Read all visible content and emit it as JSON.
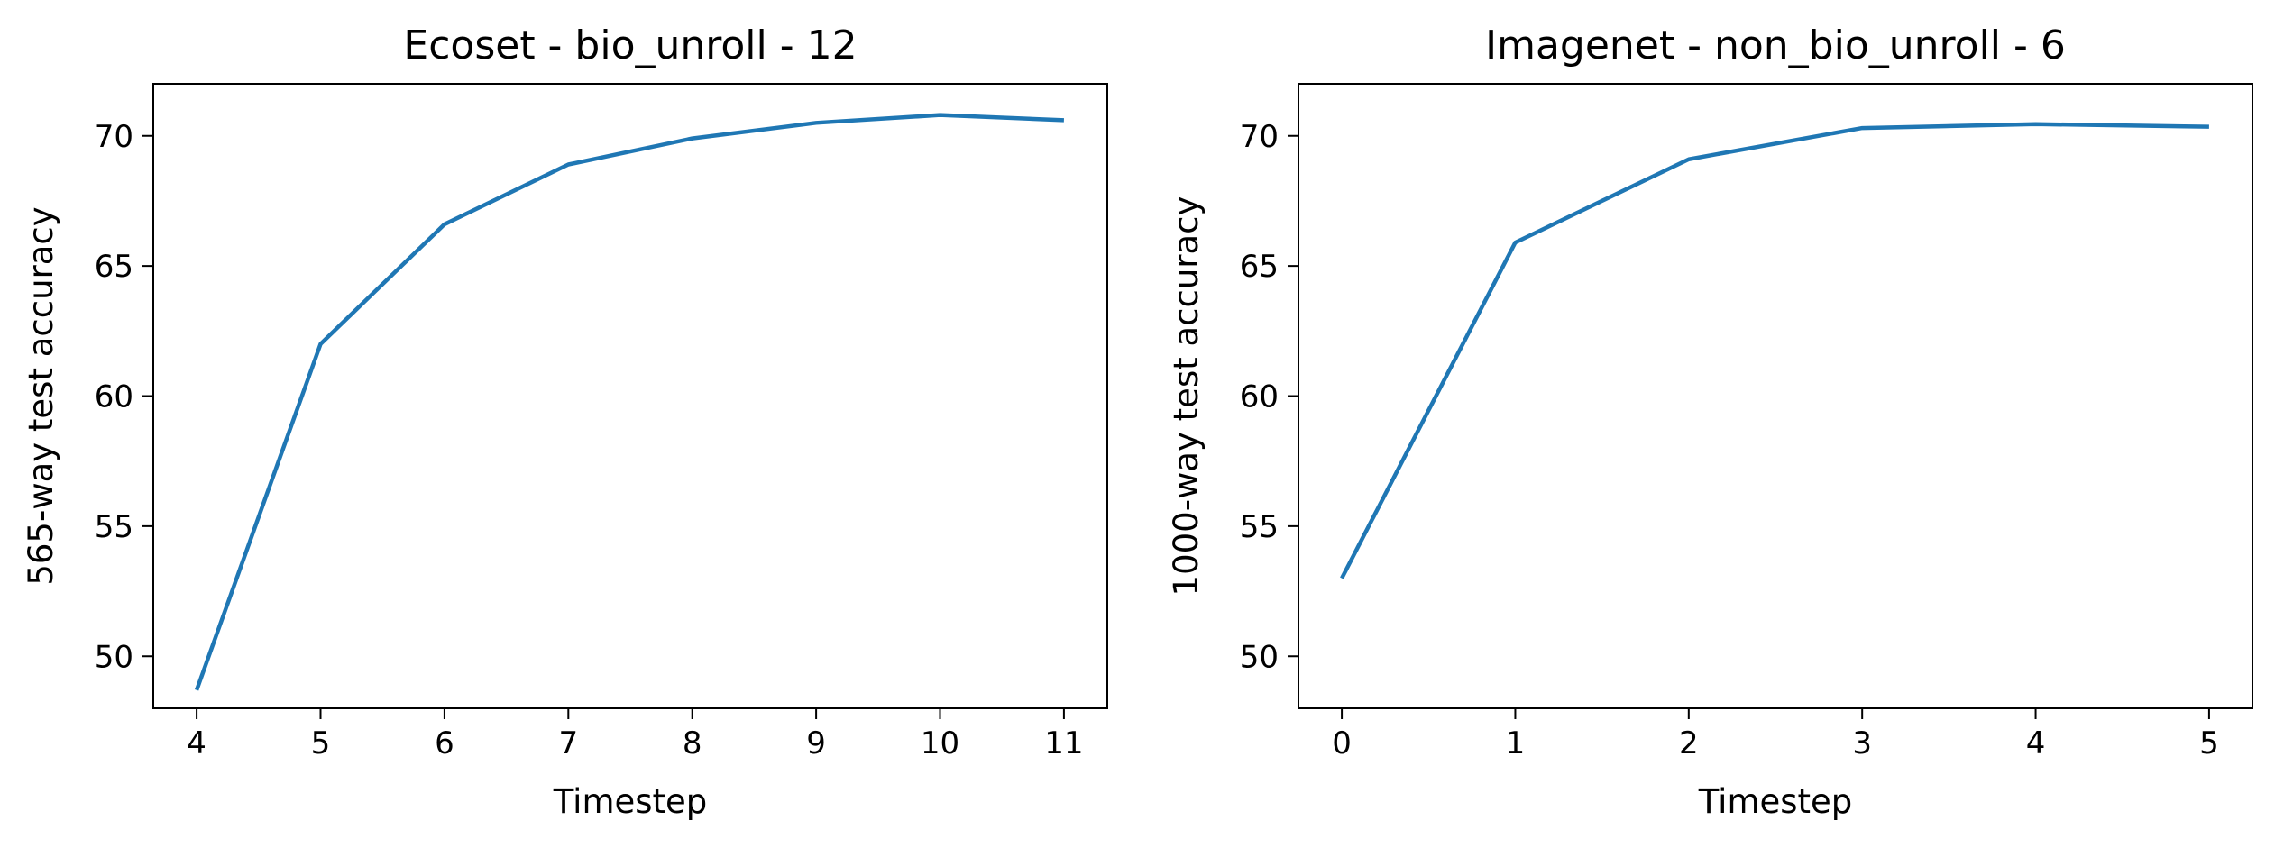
{
  "chart_data": [
    {
      "type": "line",
      "title": "Ecoset - bio_unroll - 12",
      "xlabel": "Timestep",
      "ylabel": "565-way test accuracy",
      "xlim": [
        3.65,
        11.35
      ],
      "ylim": [
        48,
        72
      ],
      "xticks": [
        4,
        5,
        6,
        7,
        8,
        9,
        10,
        11
      ],
      "yticks": [
        50,
        55,
        60,
        65,
        70
      ],
      "grid": false,
      "color": "#1f77b4",
      "x": [
        4,
        5,
        6,
        7,
        8,
        9,
        10,
        11
      ],
      "series": [
        {
          "values": [
            48.7,
            62.0,
            66.6,
            68.9,
            69.9,
            70.5,
            70.8,
            70.6
          ]
        }
      ]
    },
    {
      "type": "line",
      "title": "Imagenet - non_bio_unroll - 6",
      "xlabel": "Timestep",
      "ylabel": "1000-way test accuracy",
      "xlim": [
        -0.25,
        5.25
      ],
      "ylim": [
        48,
        72
      ],
      "xticks": [
        0,
        1,
        2,
        3,
        4,
        5
      ],
      "yticks": [
        50,
        55,
        60,
        65,
        70
      ],
      "grid": false,
      "color": "#1f77b4",
      "x": [
        0,
        1,
        2,
        3,
        4,
        5
      ],
      "series": [
        {
          "values": [
            53.0,
            65.9,
            69.1,
            70.3,
            70.45,
            70.35
          ]
        }
      ]
    }
  ]
}
